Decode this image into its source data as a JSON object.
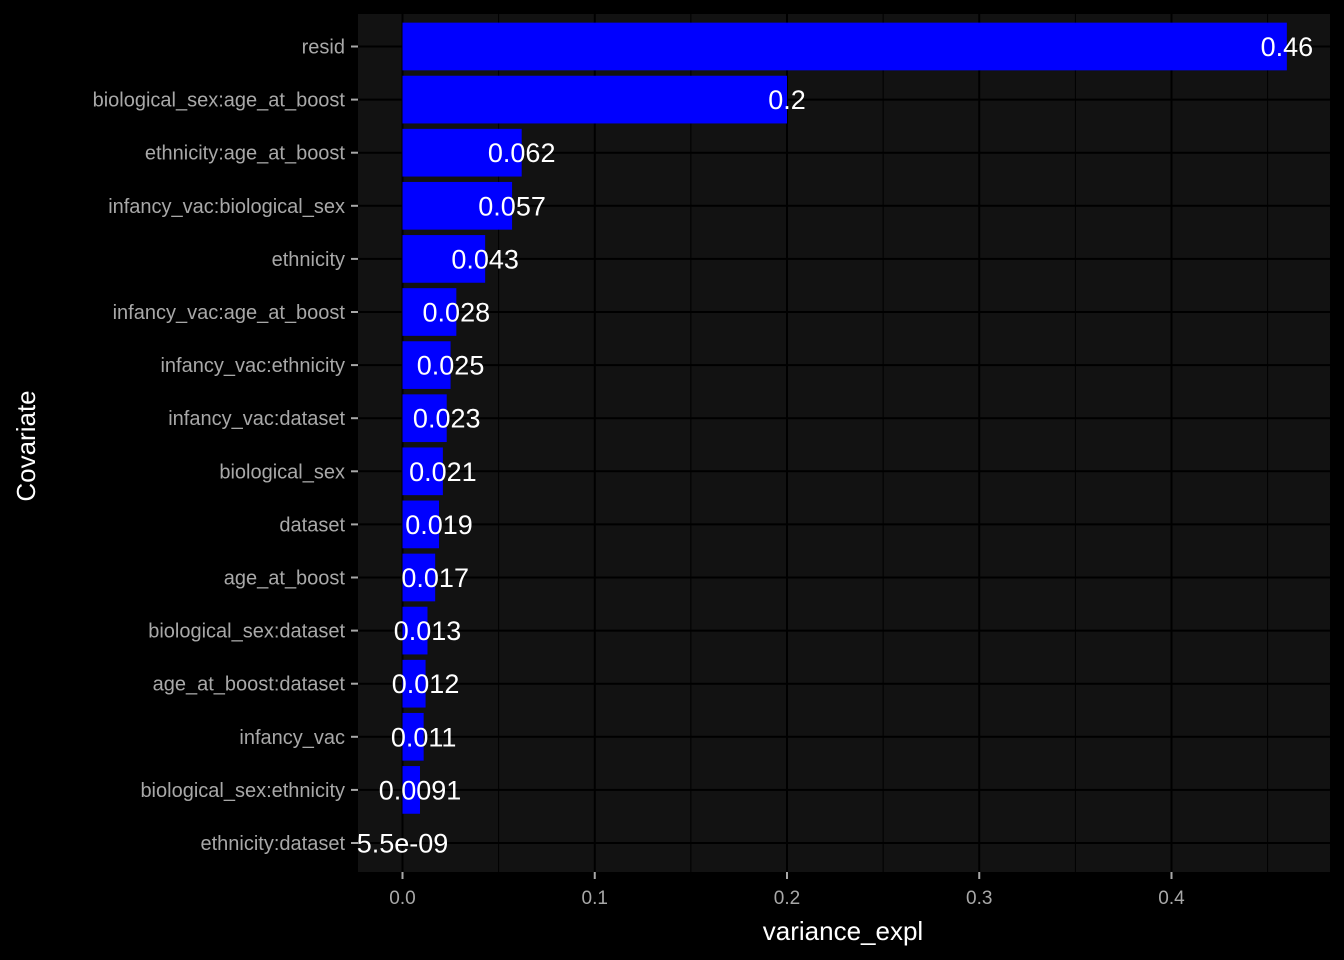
{
  "chart_data": {
    "type": "bar",
    "orientation": "horizontal",
    "categories": [
      "resid",
      "biological_sex:age_at_boost",
      "ethnicity:age_at_boost",
      "infancy_vac:biological_sex",
      "ethnicity",
      "infancy_vac:age_at_boost",
      "infancy_vac:ethnicity",
      "infancy_vac:dataset",
      "biological_sex",
      "dataset",
      "age_at_boost",
      "biological_sex:dataset",
      "age_at_boost:dataset",
      "infancy_vac",
      "biological_sex:ethnicity",
      "ethnicity:dataset"
    ],
    "values": [
      0.46,
      0.2,
      0.062,
      0.057,
      0.043,
      0.028,
      0.025,
      0.023,
      0.021,
      0.019,
      0.017,
      0.013,
      0.012,
      0.011,
      0.0091,
      5.5e-09
    ],
    "data_labels": [
      "0.46",
      "0.2",
      "0.062",
      "0.057",
      "0.043",
      "0.028",
      "0.025",
      "0.023",
      "0.021",
      "0.019",
      "0.017",
      "0.013",
      "0.012",
      "0.011",
      "0.0091",
      "5.5e-09"
    ],
    "xlabel": "variance_expl",
    "ylabel": "Covariate",
    "xlim": [
      -0.0228,
      0.4829
    ],
    "x_ticks": [
      0.0,
      0.1,
      0.2,
      0.3,
      0.4
    ],
    "x_tick_labels": [
      "0.0",
      "0.1",
      "0.2",
      "0.3",
      "0.4"
    ],
    "grid": true,
    "legend": "none",
    "colors": {
      "bar": "#0000ff",
      "panel": "#121212",
      "background": "#000000",
      "grid": "#000000",
      "text": "#ffffff",
      "tick_text": "#a8a8a8"
    }
  }
}
